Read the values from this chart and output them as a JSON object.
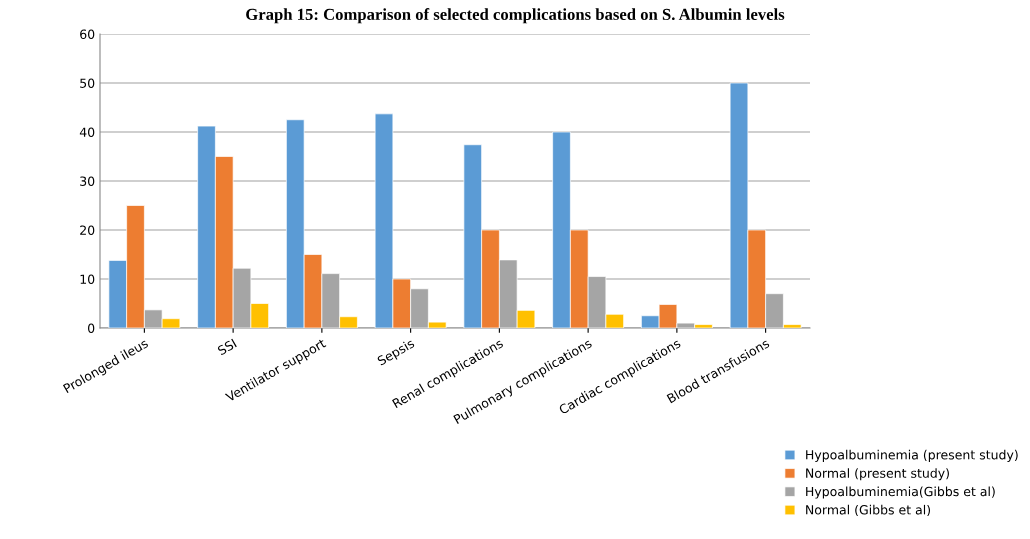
{
  "chart_data": {
    "type": "bar",
    "title": "Graph 15: Comparison of selected complications based on S. Albumin levels",
    "categories": [
      "Prolonged ileus",
      "SSI",
      "Ventilator support",
      "Sepsis",
      "Renal complications",
      "Pulmonary complications",
      "Cardiac complications",
      "Blood transfusions"
    ],
    "series": [
      {
        "name": "Hypoalbuminemia (present study)",
        "color": "#5b9bd5",
        "values": [
          13.8,
          41.2,
          42.5,
          43.7,
          37.4,
          40,
          2.5,
          50
        ]
      },
      {
        "name": "Normal (present study)",
        "color": "#ed7d31",
        "values": [
          25,
          35,
          15,
          10,
          20,
          20,
          4.8,
          20
        ]
      },
      {
        "name": "Hypoalbuminemia(Gibbs et al)",
        "color": "#a5a5a5",
        "values": [
          3.7,
          12.2,
          11.1,
          8.0,
          13.9,
          10.5,
          1.0,
          7.0
        ]
      },
      {
        "name": "Normal (Gibbs et al)",
        "color": "#ffc000",
        "values": [
          1.9,
          5.0,
          2.3,
          1.2,
          3.6,
          2.8,
          0.7,
          0.7
        ]
      }
    ],
    "ylim": [
      0,
      60
    ],
    "yticks": [
      0,
      10,
      20,
      30,
      40,
      50,
      60
    ],
    "grid": "y",
    "legend": "bottom right"
  }
}
